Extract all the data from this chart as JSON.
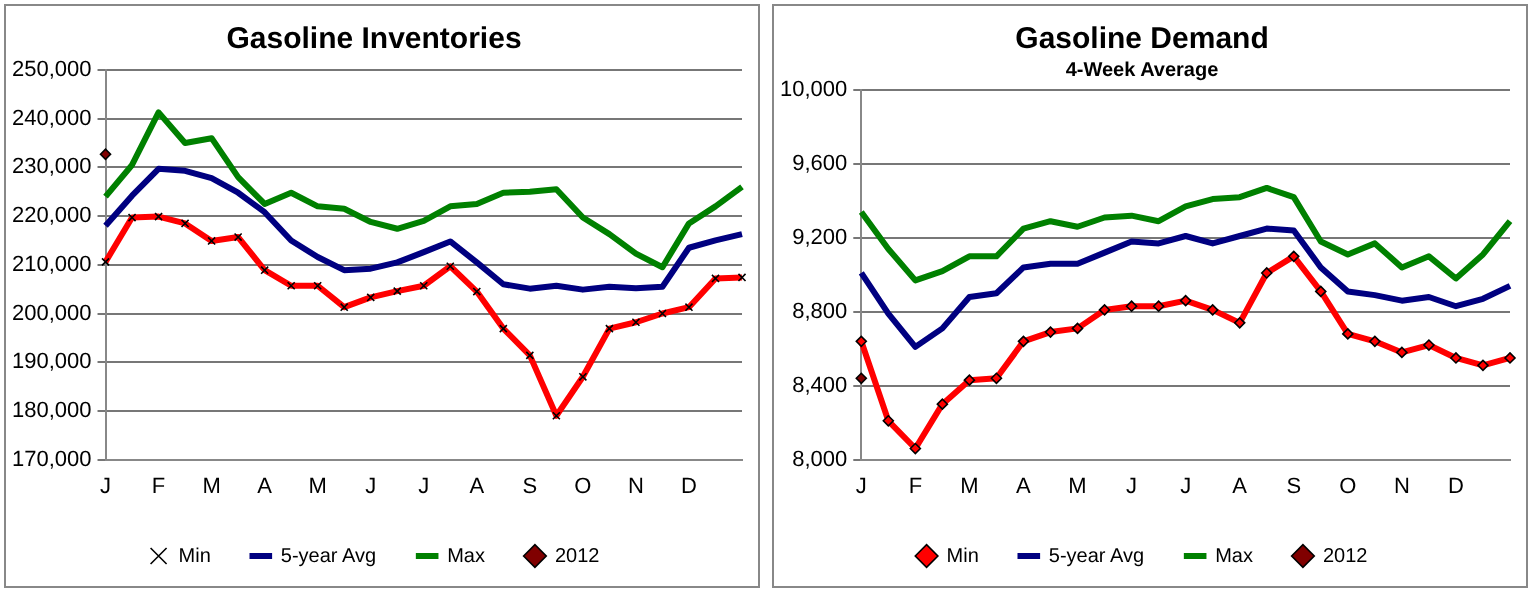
{
  "chart_data": [
    {
      "type": "line",
      "title": "Gasoline Inventories",
      "legend": "bottom",
      "grid": "y",
      "line_style": "solid",
      "categories": [
        "J",
        null,
        "F",
        null,
        "M",
        null,
        "A",
        null,
        "M",
        null,
        "J",
        null,
        "J",
        null,
        "A",
        null,
        "S",
        null,
        "O",
        null,
        "N",
        null,
        "D",
        null,
        null
      ],
      "ylim": [
        170000,
        250000
      ],
      "yticks": [
        {
          "value": 170000,
          "label": "170,000"
        },
        {
          "value": 180000,
          "label": "180,000"
        },
        {
          "value": 190000,
          "label": "190,000"
        },
        {
          "value": 200000,
          "label": "200,000"
        },
        {
          "value": 210000,
          "label": "210,000"
        },
        {
          "value": 220000,
          "label": "220,000"
        },
        {
          "value": 230000,
          "label": "230,000"
        },
        {
          "value": 240000,
          "label": "240,000"
        },
        {
          "value": 250000,
          "label": "250,000"
        }
      ],
      "series": [
        {
          "name": "Min",
          "color": "#ff0000",
          "marker": "cross",
          "values": [
            210600,
            219700,
            219900,
            218500,
            214900,
            215700,
            208900,
            205700,
            205700,
            201300,
            203300,
            204600,
            205700,
            209700,
            204500,
            196900,
            191400,
            179000,
            187000,
            196900,
            198200,
            200000,
            201300,
            207200,
            207400
          ]
        },
        {
          "name": "5-year Avg",
          "color": "#000080",
          "values": [
            218000,
            224200,
            229700,
            229300,
            227800,
            224800,
            220800,
            215000,
            211600,
            208900,
            209200,
            210500,
            212600,
            214800,
            210500,
            206000,
            205100,
            205700,
            204900,
            205500,
            205200,
            205500,
            213500,
            215000,
            216300
          ]
        },
        {
          "name": "Max",
          "color": "#008000",
          "values": [
            224000,
            230500,
            241300,
            235000,
            236000,
            228000,
            222500,
            224800,
            222000,
            221500,
            218800,
            217400,
            219000,
            222000,
            222500,
            224800,
            225000,
            225500,
            219700,
            216300,
            212300,
            209500,
            218500,
            222000,
            226000
          ]
        },
        {
          "name": "2012",
          "color": "#800000",
          "marker": "diamond",
          "values": [
            232700,
            null,
            null,
            null,
            null,
            null,
            null,
            null,
            null,
            null,
            null,
            null,
            null,
            null,
            null,
            null,
            null,
            null,
            null,
            null,
            null,
            null,
            null,
            null,
            null
          ]
        }
      ]
    },
    {
      "type": "line",
      "title": "Gasoline Demand",
      "subtitle": "4-Week Average",
      "legend": "bottom",
      "grid": "y",
      "line_style": "solid",
      "categories": [
        "J",
        null,
        "F",
        null,
        "M",
        null,
        "A",
        null,
        "M",
        null,
        "J",
        null,
        "J",
        null,
        "A",
        null,
        "S",
        null,
        "O",
        null,
        "N",
        null,
        "D",
        null,
        null
      ],
      "ylim": [
        8000,
        10000
      ],
      "yticks": [
        {
          "value": 8000,
          "label": "8,000"
        },
        {
          "value": 8400,
          "label": "8,400"
        },
        {
          "value": 8800,
          "label": "8,800"
        },
        {
          "value": 9200,
          "label": "9,200"
        },
        {
          "value": 9600,
          "label": "9,600"
        },
        {
          "value": 10000,
          "label": "10,000"
        }
      ],
      "series": [
        {
          "name": "Min",
          "color": "#ff0000",
          "marker": "diamond",
          "values": [
            8640,
            8210,
            8060,
            8300,
            8430,
            8440,
            8640,
            8690,
            8710,
            8810,
            8830,
            8830,
            8860,
            8810,
            8740,
            9010,
            9100,
            8910,
            8680,
            8640,
            8580,
            8620,
            8550,
            8510,
            8550
          ]
        },
        {
          "name": "5-year Avg",
          "color": "#000080",
          "values": [
            9010,
            8790,
            8610,
            8710,
            8880,
            8900,
            9040,
            9060,
            9060,
            9120,
            9180,
            9170,
            9210,
            9170,
            9210,
            9250,
            9240,
            9040,
            8910,
            8890,
            8860,
            8880,
            8830,
            8870,
            8940
          ]
        },
        {
          "name": "Max",
          "color": "#008000",
          "values": [
            9340,
            9140,
            8970,
            9020,
            9100,
            9100,
            9250,
            9290,
            9260,
            9310,
            9320,
            9290,
            9370,
            9410,
            9420,
            9470,
            9420,
            9180,
            9110,
            9170,
            9040,
            9100,
            8980,
            9110,
            9290
          ]
        },
        {
          "name": "2012",
          "color": "#800000",
          "marker": "diamond",
          "values": [
            8440,
            null,
            null,
            null,
            null,
            null,
            null,
            null,
            null,
            null,
            null,
            null,
            null,
            null,
            null,
            null,
            null,
            null,
            null,
            null,
            null,
            null,
            null,
            null,
            null
          ]
        }
      ]
    }
  ]
}
